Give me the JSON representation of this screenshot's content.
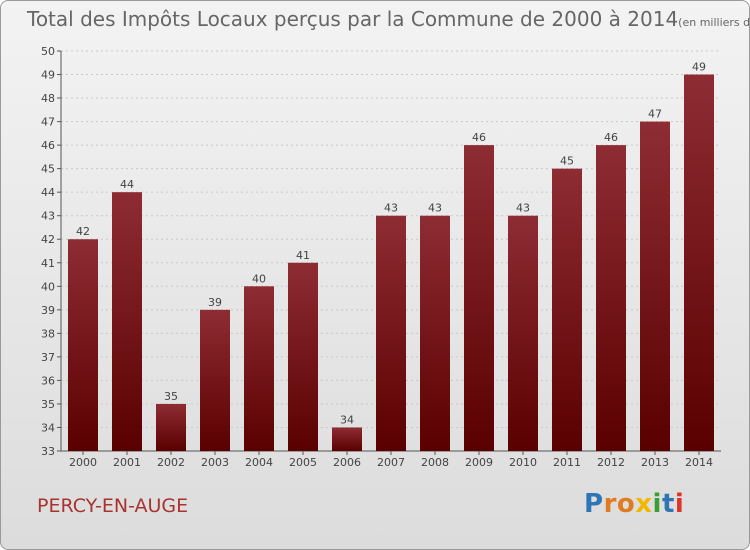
{
  "title": "Total des Impôts Locaux perçus par la Commune de 2000 à 2014",
  "unit_label": "(en milliers d'€)",
  "commune": "PERCY-EN-AUGE",
  "logo": {
    "text": "Proxiti",
    "letters": [
      "P",
      "r",
      "o",
      "x",
      "i",
      "t",
      "i"
    ],
    "colors": [
      "#2e75b6",
      "#e07b1f",
      "#e07b1f",
      "#f2b800",
      "#3aa035",
      "#2e75b6",
      "#e0342b"
    ]
  },
  "colors": {
    "bar_top": "#8e2c33",
    "bar_bottom": "#5a0000",
    "grid": "#c8c8c8",
    "axis": "#555555"
  },
  "chart_data": {
    "type": "bar",
    "title": "Total des Impôts Locaux perçus par la Commune de 2000 à 2014",
    "xlabel": "",
    "ylabel": "",
    "categories": [
      "2000",
      "2001",
      "2002",
      "2003",
      "2004",
      "2005",
      "2006",
      "2007",
      "2008",
      "2009",
      "2010",
      "2011",
      "2012",
      "2013",
      "2014"
    ],
    "values": [
      42,
      44,
      35,
      39,
      40,
      41,
      34,
      43,
      43,
      46,
      43,
      45,
      46,
      47,
      49
    ],
    "ylim": [
      33,
      50
    ],
    "yticks": [
      33,
      34,
      35,
      36,
      37,
      38,
      39,
      40,
      41,
      42,
      43,
      44,
      45,
      46,
      47,
      48,
      49,
      50
    ],
    "grid": true
  }
}
